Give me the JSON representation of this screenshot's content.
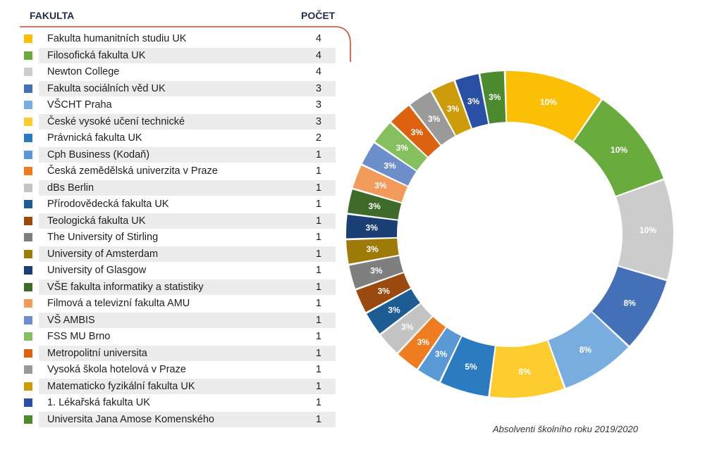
{
  "header": {
    "faculty_label": "FAKULTA",
    "count_label": "POČET"
  },
  "caption": "Absolventi školního roku 2019/2020",
  "chart_data": {
    "type": "pie",
    "categories": [
      "Fakulta humanitních studiu UK",
      "Filosofická fakulta UK",
      "Newton College",
      "Fakulta sociálních věd UK",
      "VŠCHT Praha",
      "České vysoké učení technické",
      "Právnická fakulta UK",
      "Cph Business (Kodaň)",
      "Česká zemědělská univerzita v Praze",
      "dBs Berlin",
      "Přírodovědecká fakulta UK",
      "Teologická fakulta UK",
      "The University of Stirling",
      "University of Amsterdam",
      "University of Glasgow",
      "VŠE fakulta informatiky a statistiky",
      "Filmová a televizní fakulta AMU",
      "VŠ AMBIS",
      "FSS MU Brno",
      "Metropolitní universita",
      "Vysoká škola hotelová v Praze",
      "Matematicko fyzikální fakulta UK",
      "1. Lékařská fakulta  UK",
      "Universita Jana Amose Komenského"
    ],
    "values": [
      4,
      4,
      4,
      3,
      3,
      3,
      2,
      1,
      1,
      1,
      1,
      1,
      1,
      1,
      1,
      1,
      1,
      1,
      1,
      1,
      1,
      1,
      1,
      1
    ],
    "labels": [
      "10%",
      "10%",
      "10%",
      "8%",
      "8%",
      "8%",
      "5%",
      "3%",
      "3%",
      "3%",
      "3%",
      "3%",
      "3%",
      "3%",
      "3%",
      "3%",
      "3%",
      "3%",
      "3%",
      "3%",
      "3%",
      "3%",
      "3%",
      "3%"
    ],
    "colors": [
      "#fbbf06",
      "#6aab3e",
      "#cccccc",
      "#4470b8",
      "#7aaddf",
      "#fdcc2e",
      "#2b7bc0",
      "#5a99d5",
      "#ee7d22",
      "#c3c3c3",
      "#1d5d94",
      "#9a4a0f",
      "#7f7f7f",
      "#9c7b08",
      "#1b3f74",
      "#3f6b2a",
      "#f29a5b",
      "#6c8ec9",
      "#86bf5d",
      "#dc620f",
      "#9a9a9a",
      "#cc9c0a",
      "#2950a4",
      "#4c8a2f"
    ],
    "legend": "left"
  }
}
